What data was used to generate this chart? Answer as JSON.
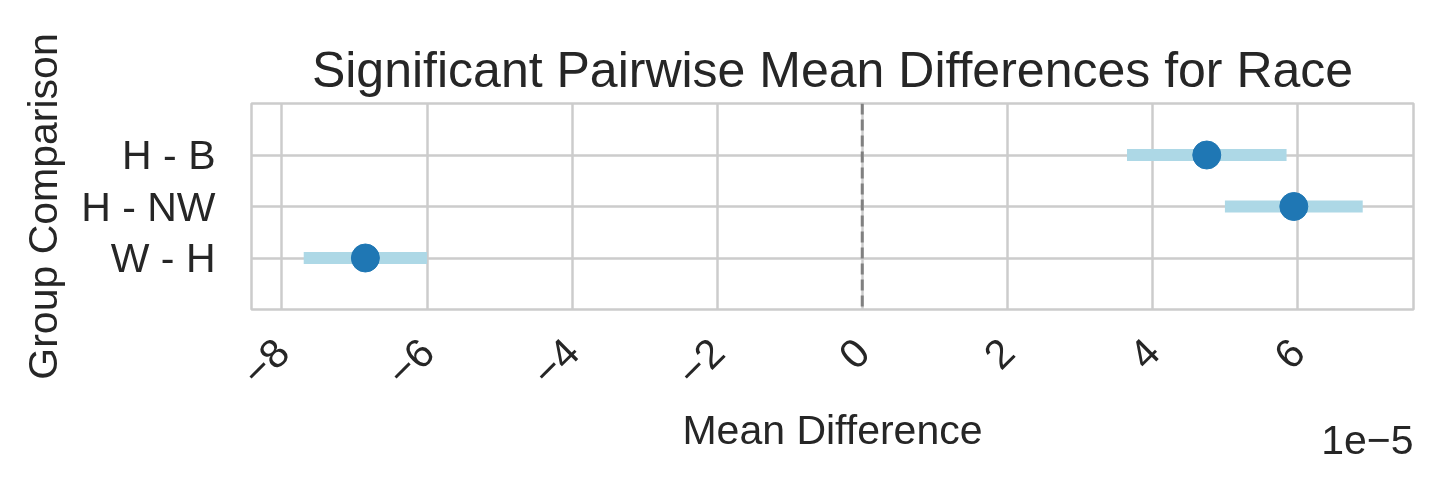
{
  "chart_data": {
    "type": "scatter",
    "orientation": "horizontal",
    "title": "Significant Pairwise Mean Differences for Race",
    "xlabel": "Mean Difference",
    "ylabel": "Group Comparison",
    "categories": [
      "H - B",
      "H - NW",
      "W - H"
    ],
    "values": [
      4.75,
      5.95,
      -6.85
    ],
    "errors": [
      1.1,
      0.95,
      0.85
    ],
    "color": "#1f77b4",
    "marker": "circle",
    "xlim": [
      -8.42,
      7.6
    ],
    "xticks": [
      {
        "value": -8,
        "label": "−8"
      },
      {
        "value": -6,
        "label": "−6"
      },
      {
        "value": -4,
        "label": "−4"
      },
      {
        "value": -2,
        "label": "−2"
      },
      0,
      2,
      4,
      6
    ],
    "grid": true,
    "ref_lines": [
      {
        "axis": "x",
        "value": 0,
        "color": "#808080",
        "line_style": "dashed"
      }
    ],
    "annotations": [
      "1e−5"
    ]
  }
}
